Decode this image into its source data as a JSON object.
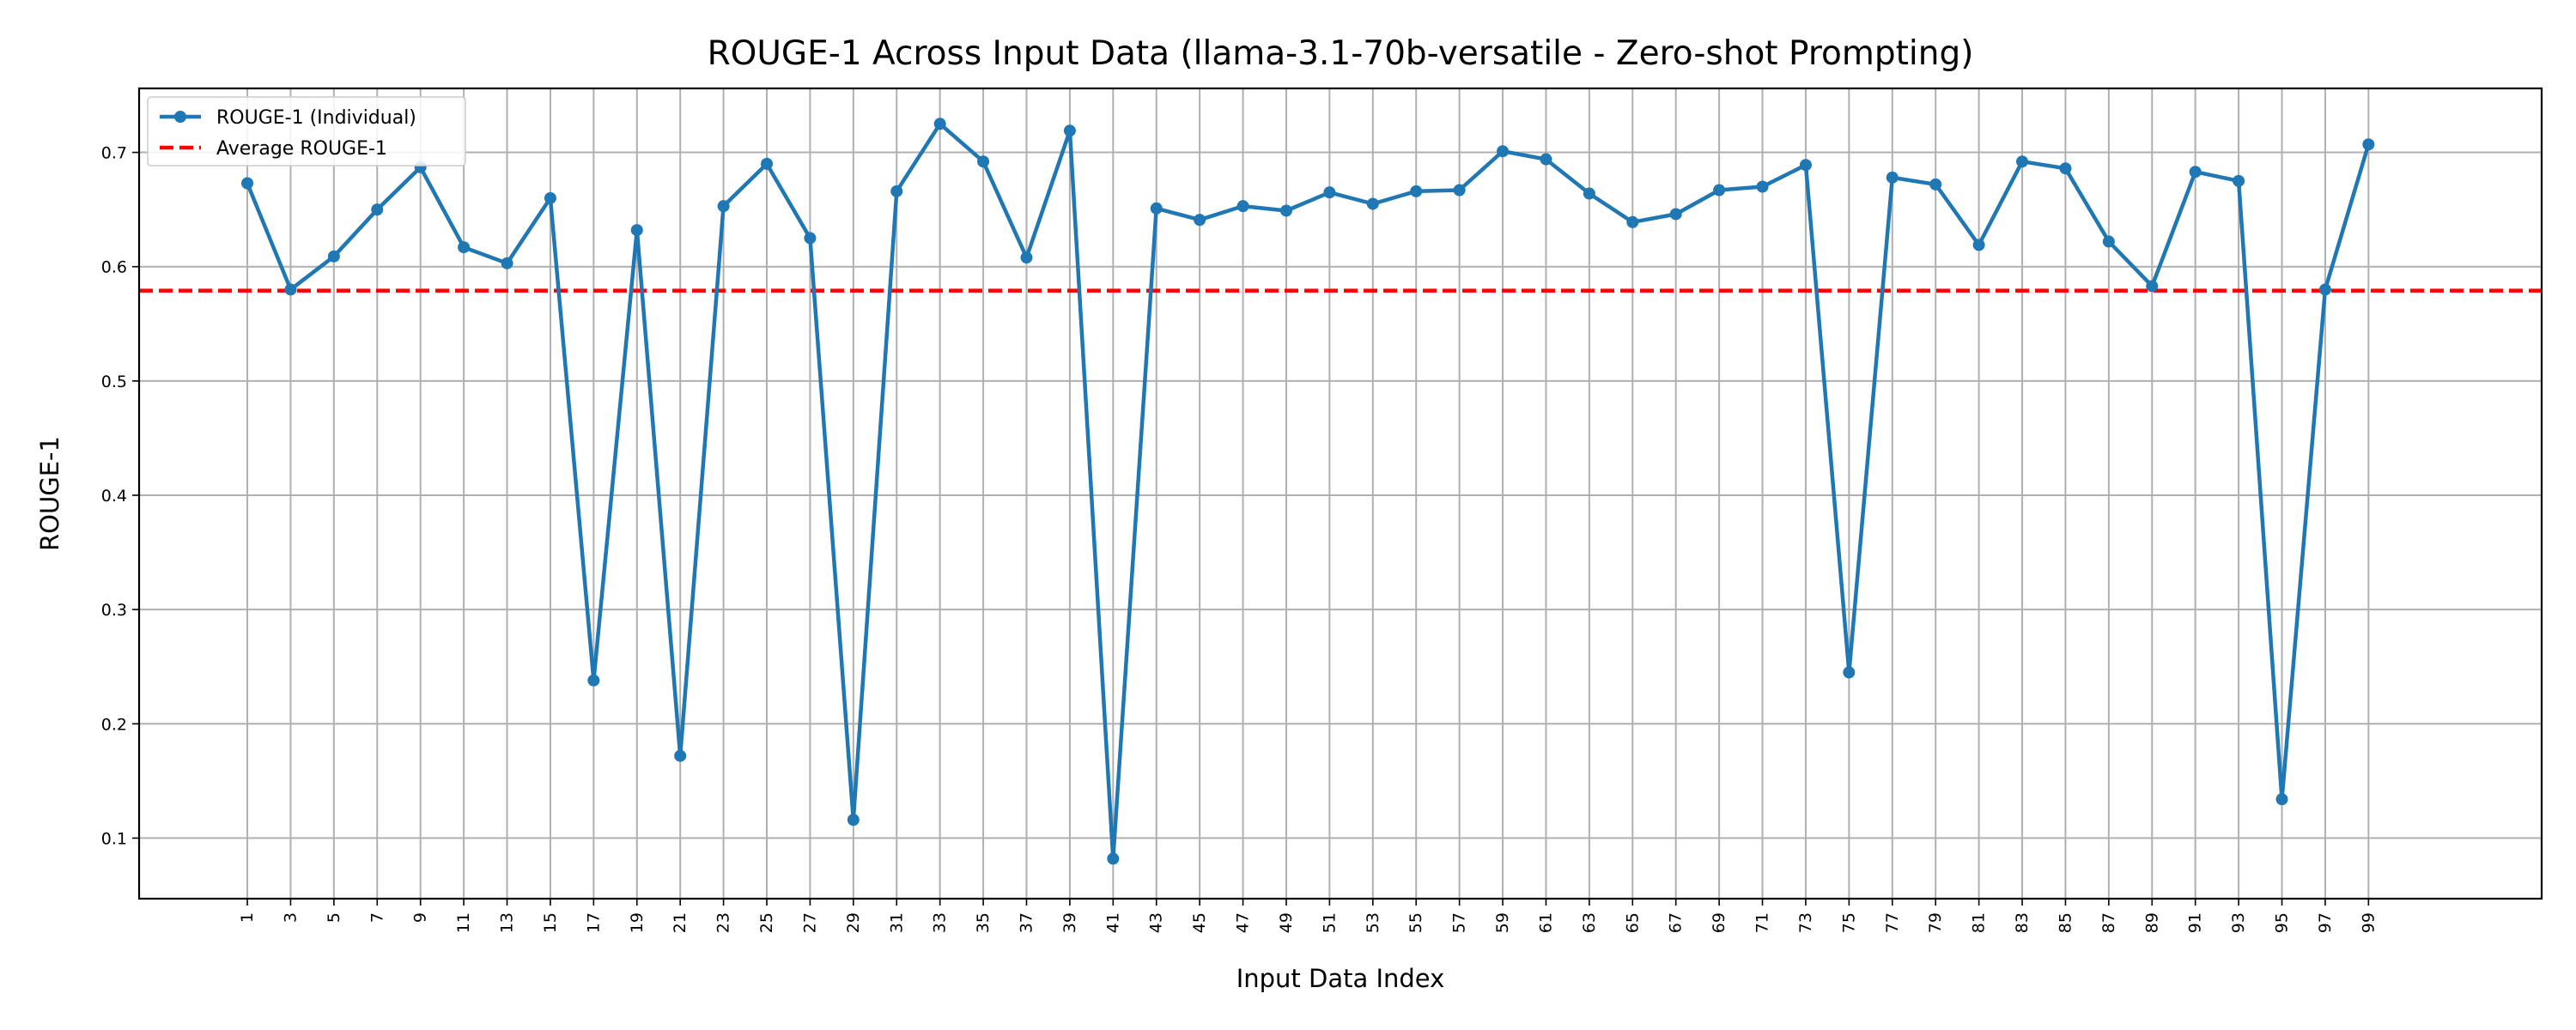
{
  "chart_data": {
    "type": "line",
    "title": "ROUGE-1 Across Input Data (llama-3.1-70b-versatile - Zero-shot Prompting)",
    "xlabel": "Input Data Index",
    "ylabel": "ROUGE-1",
    "x": [
      1,
      3,
      5,
      7,
      9,
      11,
      13,
      15,
      17,
      19,
      21,
      23,
      25,
      27,
      29,
      31,
      33,
      35,
      37,
      39,
      41,
      43,
      45,
      47,
      49,
      51,
      53,
      55,
      57,
      59,
      61,
      63,
      65,
      67,
      69,
      71,
      73,
      75,
      77,
      79,
      81,
      83,
      85,
      87,
      89,
      91,
      93,
      95,
      97,
      99
    ],
    "x_tick_labels": [
      "1",
      "3",
      "5",
      "7",
      "9",
      "11",
      "13",
      "15",
      "17",
      "19",
      "21",
      "23",
      "25",
      "27",
      "29",
      "31",
      "33",
      "35",
      "37",
      "39",
      "41",
      "43",
      "45",
      "47",
      "49",
      "51",
      "53",
      "55",
      "57",
      "59",
      "61",
      "63",
      "65",
      "67",
      "69",
      "71",
      "73",
      "75",
      "77",
      "79",
      "81",
      "83",
      "85",
      "87",
      "89",
      "91",
      "93",
      "95",
      "97",
      "99"
    ],
    "y_ticks": [
      0.1,
      0.2,
      0.3,
      0.4,
      0.5,
      0.6,
      0.7
    ],
    "y_tick_labels": [
      "0.1",
      "0.2",
      "0.3",
      "0.4",
      "0.5",
      "0.6",
      "0.7"
    ],
    "xlim": [
      -4,
      107
    ],
    "ylim": [
      0.047,
      0.756
    ],
    "grid": true,
    "legend_position": "top-left",
    "series": [
      {
        "name": "ROUGE-1 (Individual)",
        "color": "#1f77b4",
        "style": "solid-with-markers",
        "values": [
          0.673,
          0.58,
          0.609,
          0.65,
          0.687,
          0.617,
          0.603,
          0.66,
          0.238,
          0.632,
          0.172,
          0.653,
          0.69,
          0.625,
          0.116,
          0.666,
          0.725,
          0.692,
          0.608,
          0.719,
          0.082,
          0.651,
          0.641,
          0.653,
          0.649,
          0.665,
          0.655,
          0.666,
          0.667,
          0.701,
          0.694,
          0.664,
          0.639,
          0.646,
          0.667,
          0.67,
          0.689,
          0.245,
          0.678,
          0.672,
          0.619,
          0.692,
          0.686,
          0.622,
          0.583,
          0.683,
          0.675,
          0.134,
          0.58,
          0.707
        ]
      },
      {
        "name": "Average ROUGE-1",
        "color": "#ff0000",
        "style": "dashed",
        "value": 0.579
      }
    ]
  }
}
